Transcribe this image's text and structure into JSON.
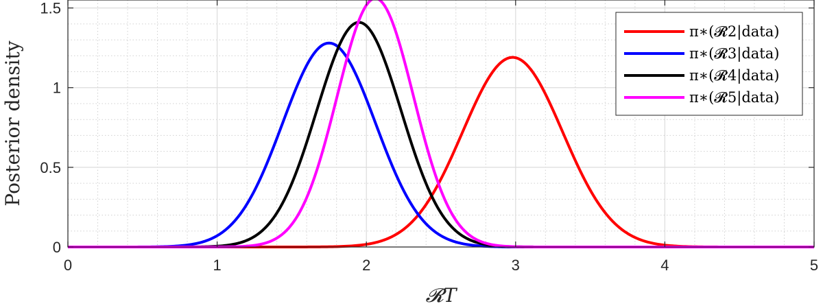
{
  "chart_data": {
    "type": "line",
    "xlabel": "𝓡T",
    "ylabel": "Posterior density",
    "xlim": [
      0,
      5
    ],
    "ylim": [
      0,
      1.55
    ],
    "x_ticks": [
      "0",
      "1",
      "2",
      "3",
      "4",
      "5"
    ],
    "y_ticks": [
      "0",
      "0.5",
      "1",
      "1.5"
    ],
    "grid": true,
    "minor_grid": true,
    "legend_position": "top-right",
    "series": [
      {
        "name": "π∗(𝓡2|data)",
        "color": "#ff0000",
        "peak_x": 2.98,
        "peak_y": 1.19
      },
      {
        "name": "π∗(𝓡3|data)",
        "color": "#0000ff",
        "peak_x": 1.75,
        "peak_y": 1.28
      },
      {
        "name": "π∗(𝓡4|data)",
        "color": "#000000",
        "peak_x": 1.95,
        "peak_y": 1.41
      },
      {
        "name": "π∗(𝓡5|data)",
        "color": "#ff00ff",
        "peak_x": 2.06,
        "peak_y": 1.56
      }
    ]
  }
}
